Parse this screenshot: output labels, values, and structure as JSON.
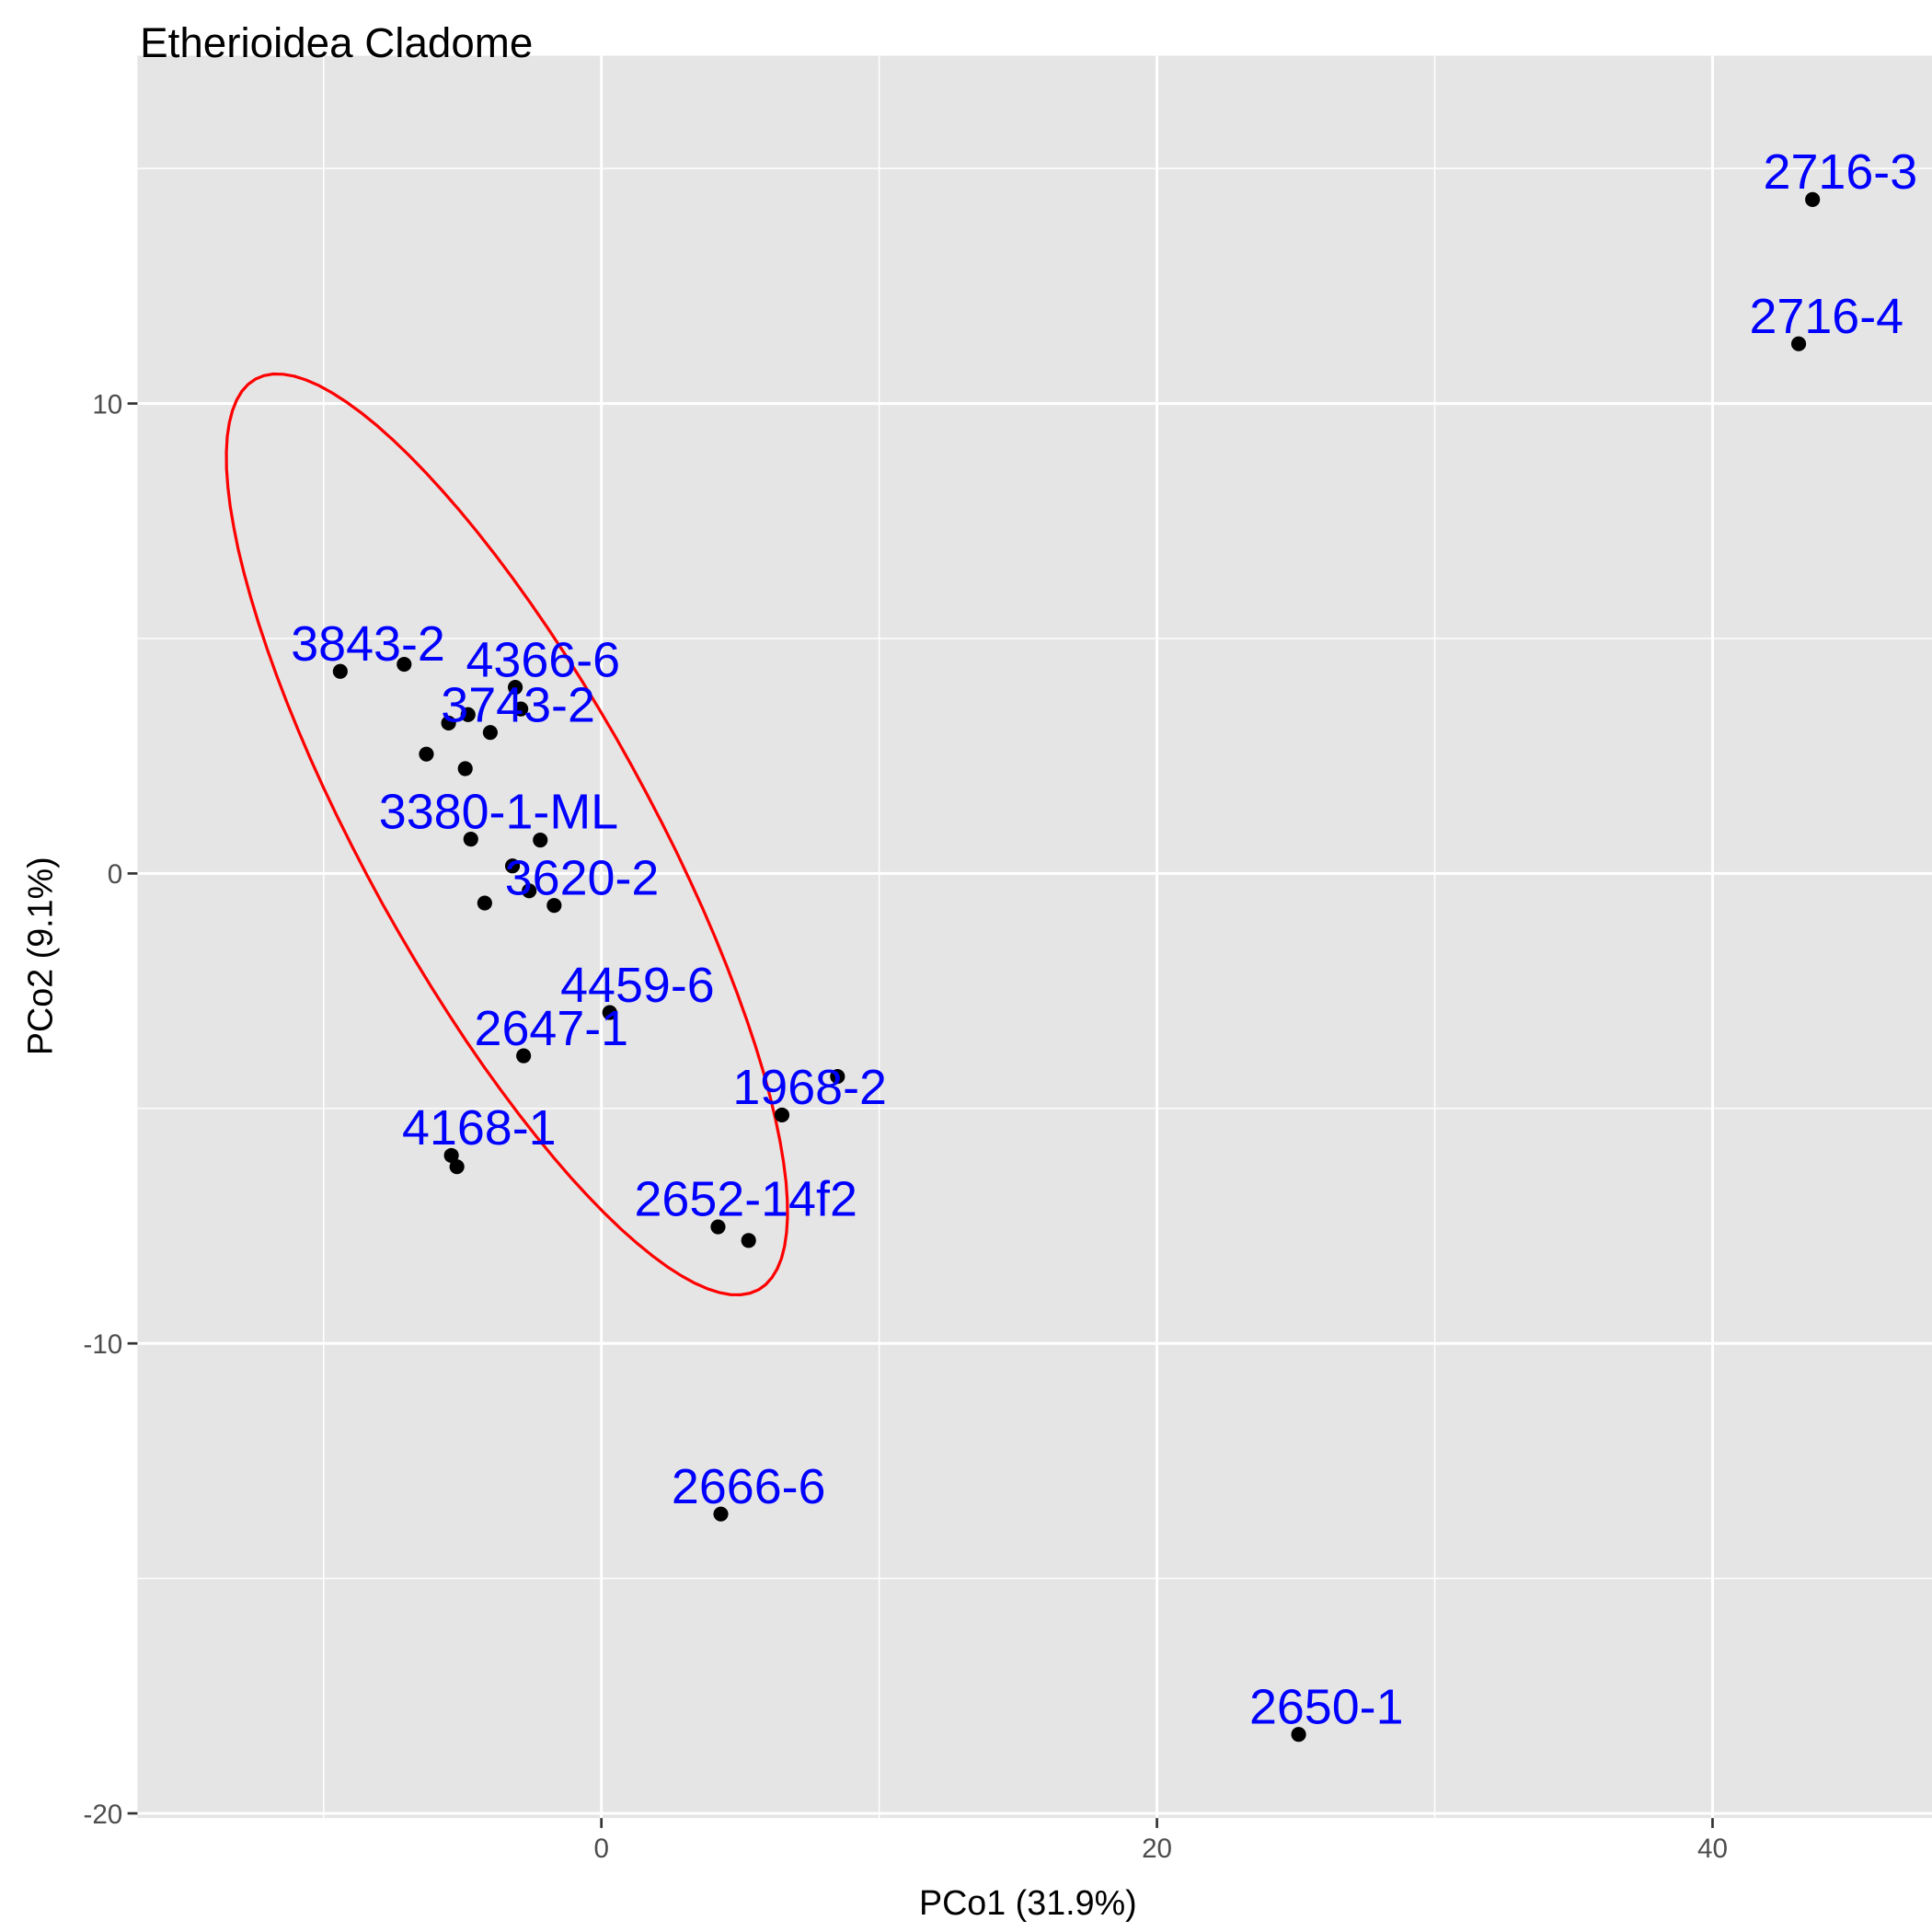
{
  "chart_data": {
    "type": "scatter",
    "title": "Etherioidea Cladome",
    "xlabel": "PCo1 (31.9%)",
    "ylabel": "PCo2 (9.1%)",
    "xlim": [
      -16.7,
      47.9
    ],
    "ylim": [
      -20.1,
      17.4
    ],
    "xticks": [
      0,
      20,
      40
    ],
    "yticks": [
      -20,
      -10,
      0,
      10
    ],
    "xtick_labels": [
      "0",
      "20",
      "40"
    ],
    "ytick_labels": [
      "-20",
      "-10",
      "0",
      "10"
    ],
    "grid": true,
    "point_color": "#000000",
    "label_color": "#0000FF",
    "ellipse_color": "#FF0000",
    "ellipse_center": [
      -3.4,
      0.83
    ],
    "points": [
      {
        "x": -9.4,
        "y": 4.3,
        "label": "3843-2"
      },
      {
        "x": -7.1,
        "y": 4.45,
        "label": ""
      },
      {
        "x": -3.1,
        "y": 3.96,
        "label": "4366-6"
      },
      {
        "x": -2.9,
        "y": 3.5,
        "label": ""
      },
      {
        "x": -4.8,
        "y": 3.38,
        "label": ""
      },
      {
        "x": -5.5,
        "y": 3.2,
        "label": ""
      },
      {
        "x": -4.0,
        "y": 3.0,
        "label": "3743-2"
      },
      {
        "x": -6.3,
        "y": 2.54,
        "label": ""
      },
      {
        "x": -4.9,
        "y": 2.23,
        "label": ""
      },
      {
        "x": -4.7,
        "y": 0.73,
        "label": "3380-1-ML"
      },
      {
        "x": -2.2,
        "y": 0.71,
        "label": ""
      },
      {
        "x": -3.2,
        "y": 0.16,
        "label": ""
      },
      {
        "x": -2.6,
        "y": -0.37,
        "label": ""
      },
      {
        "x": -4.2,
        "y": -0.63,
        "label": ""
      },
      {
        "x": -1.7,
        "y": -0.68,
        "label": "3620-2"
      },
      {
        "x": 0.3,
        "y": -2.96,
        "label": "4459-6"
      },
      {
        "x": -2.8,
        "y": -3.88,
        "label": "2647-1"
      },
      {
        "x": 8.5,
        "y": -4.32,
        "label": ""
      },
      {
        "x": 6.5,
        "y": -5.14,
        "label": "1968-2"
      },
      {
        "x": -5.4,
        "y": -6.0,
        "label": "4168-1"
      },
      {
        "x": -5.2,
        "y": -6.24,
        "label": ""
      },
      {
        "x": 4.2,
        "y": -7.52,
        "label": "2652-14f2"
      },
      {
        "x": 5.3,
        "y": -7.81,
        "label": ""
      },
      {
        "x": 4.3,
        "y": -13.63,
        "label": "2666-6"
      },
      {
        "x": 25.1,
        "y": -18.32,
        "label": "2650-1"
      },
      {
        "x": 43.6,
        "y": 14.34,
        "label": "2716-3"
      },
      {
        "x": 43.1,
        "y": 11.27,
        "label": "2716-4"
      }
    ]
  }
}
